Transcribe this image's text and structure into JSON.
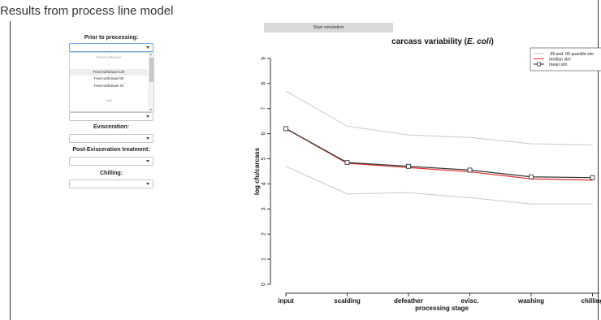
{
  "page": {
    "title": "Results from process line model"
  },
  "controls": {
    "prior_label": "Prior to processing:",
    "evisceration_label": "Evisceration:",
    "post_evisceration_label": "Post-Evisceration treatment:",
    "chilling_label": "Chilling:",
    "prior_value": "",
    "dropdown_items": [
      {
        "text": "Feed withdrawl",
        "muted": true,
        "selected": false
      },
      {
        "text": "--",
        "muted": true,
        "selected": false
      },
      {
        "text": "Feed withdrawl 12h",
        "muted": false,
        "selected": true
      },
      {
        "text": "Feed withdrawl 8h",
        "muted": false,
        "selected": false
      },
      {
        "text": "Feed withdrawl 4h",
        "muted": false,
        "selected": false
      },
      {
        "text": "",
        "muted": true,
        "selected": false
      },
      {
        "text": "Age",
        "muted": true,
        "selected": false
      },
      {
        "text": "--",
        "muted": true,
        "selected": false
      }
    ],
    "start_button": "Start simulation"
  },
  "chart_data": {
    "type": "line",
    "title_prefix": "carcass variability (",
    "title_italic": "E. coli",
    "title_suffix": ")",
    "xlabel": "processing stage",
    "ylabel": "log cfu/carcass",
    "categories": [
      "input",
      "scalding",
      "defeather",
      "evisc.",
      "washing",
      "chilling"
    ],
    "ylim": [
      0,
      9
    ],
    "yticks": [
      "0",
      "1",
      "2",
      "3",
      "4",
      "5",
      "6",
      "7",
      "8",
      "9"
    ],
    "grid": false,
    "legend_position": "top-right",
    "legend": [
      ".95 and .05 quantile sim",
      "median sim",
      "mean sim"
    ],
    "series": [
      {
        "name": ".95 and .05 quantile sim",
        "role": "upper",
        "color": "#c8c8c8",
        "values": [
          7.7,
          6.3,
          5.95,
          5.85,
          5.6,
          5.55
        ]
      },
      {
        "name": ".95 and .05 quantile sim",
        "role": "lower",
        "color": "#c8c8c8",
        "values": [
          4.7,
          3.6,
          3.65,
          3.45,
          3.2,
          3.2
        ]
      },
      {
        "name": "median sim",
        "role": "median",
        "color": "#e03030",
        "values": [
          6.2,
          4.82,
          4.65,
          4.48,
          4.2,
          4.15
        ]
      },
      {
        "name": "mean sim",
        "role": "mean",
        "color": "#333333",
        "values": [
          6.2,
          4.85,
          4.7,
          4.55,
          4.28,
          4.25
        ]
      }
    ]
  }
}
